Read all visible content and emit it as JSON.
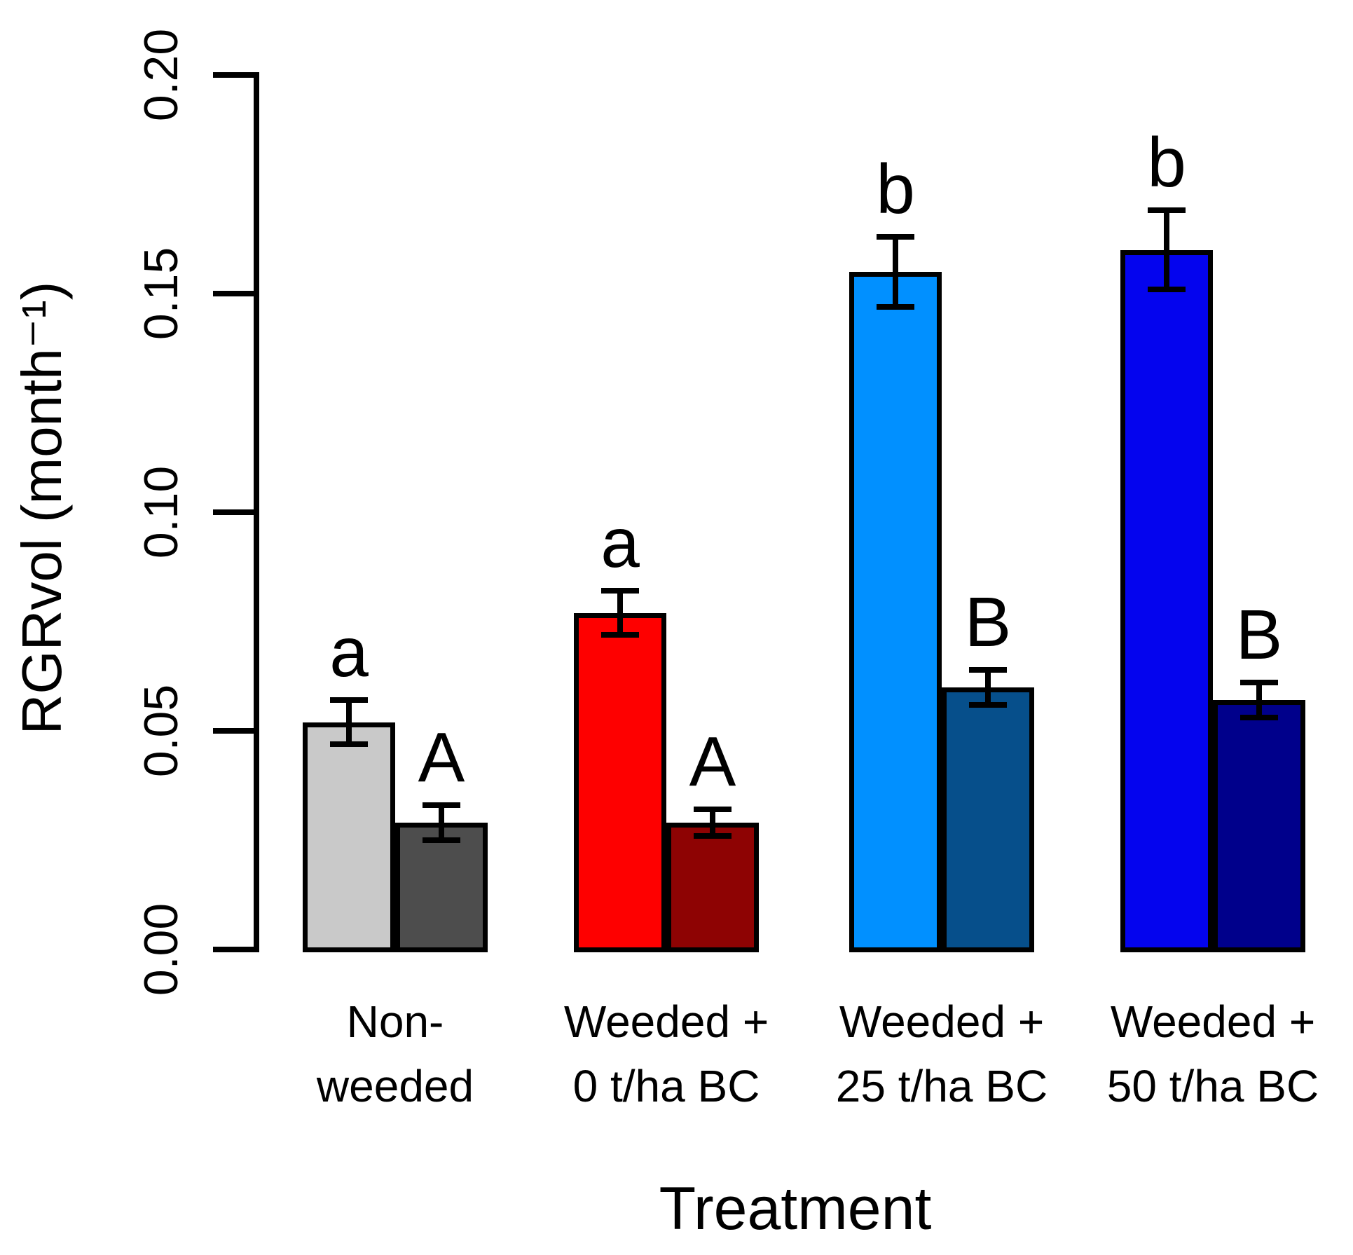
{
  "chart_data": {
    "type": "bar",
    "title": "",
    "xlabel": "Treatment",
    "ylabel": "RGRvol (month⁻¹)",
    "ylim": [
      0,
      0.2
    ],
    "ytick_labels": [
      "0.00",
      "0.05",
      "0.10",
      "0.15",
      "0.20"
    ],
    "grid": false,
    "legend": "none",
    "bars_per_group": 2,
    "groups": [
      {
        "category_lines": [
          "Non-",
          "weeded"
        ],
        "bars": [
          {
            "value": 0.052,
            "error": 0.005,
            "letter": "a",
            "fill": "#C9C9C9"
          },
          {
            "value": 0.029,
            "error": 0.004,
            "letter": "A",
            "fill": "#4D4D4D"
          }
        ]
      },
      {
        "category_lines": [
          "Weeded +",
          "0 t/ha BC"
        ],
        "bars": [
          {
            "value": 0.077,
            "error": 0.005,
            "letter": "a",
            "fill": "#FE0000"
          },
          {
            "value": 0.029,
            "error": 0.003,
            "letter": "A",
            "fill": "#8E0303"
          }
        ]
      },
      {
        "category_lines": [
          "Weeded +",
          "25 t/ha BC"
        ],
        "bars": [
          {
            "value": 0.155,
            "error": 0.008,
            "letter": "b",
            "fill": "#0190FF"
          },
          {
            "value": 0.06,
            "error": 0.004,
            "letter": "B",
            "fill": "#064F8B"
          }
        ]
      },
      {
        "category_lines": [
          "Weeded +",
          "50 t/ha BC"
        ],
        "bars": [
          {
            "value": 0.16,
            "error": 0.009,
            "letter": "b",
            "fill": "#0404EE"
          },
          {
            "value": 0.057,
            "error": 0.004,
            "letter": "B",
            "fill": "#00008B"
          }
        ]
      }
    ]
  }
}
